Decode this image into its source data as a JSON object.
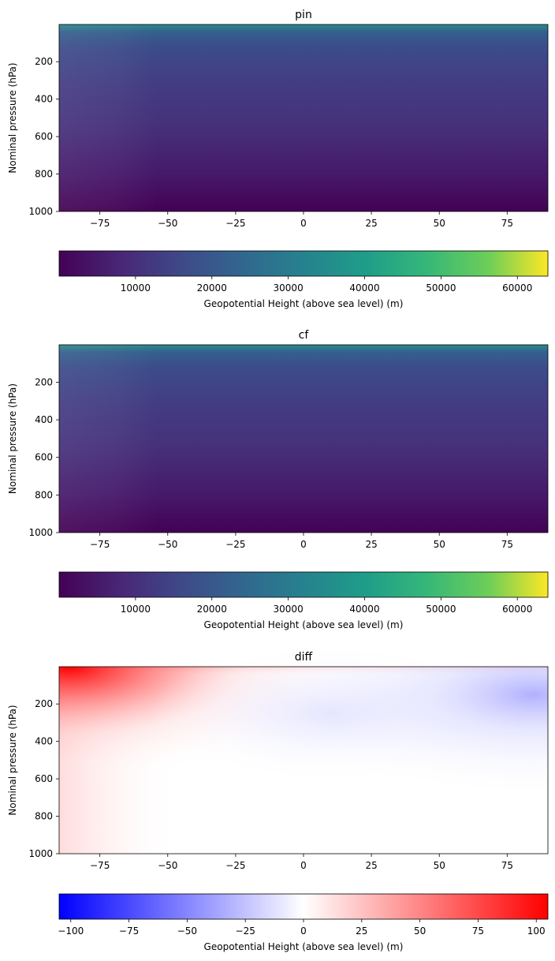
{
  "chart_data": [
    {
      "type": "heatmap",
      "title": "pin",
      "ylabel": "Nominal pressure (hPa)",
      "xlabel": "",
      "x_range": [
        -90,
        90
      ],
      "y_range": [
        1000,
        1
      ],
      "y_inverted": true,
      "x_ticks": [
        "−75",
        "−50",
        "−25",
        "0",
        "25",
        "50",
        "75"
      ],
      "x_tick_values": [
        -75,
        -50,
        -25,
        0,
        25,
        50,
        75
      ],
      "y_ticks": [
        "200",
        "400",
        "600",
        "800",
        "1000"
      ],
      "y_tick_values": [
        200,
        400,
        600,
        800,
        1000
      ],
      "colormap": "viridis",
      "colorbar": {
        "label": "Geopotential Height (above sea level) (m)",
        "range": [
          0,
          64000
        ],
        "ticks": [
          "10000",
          "20000",
          "30000",
          "40000",
          "50000",
          "60000"
        ],
        "tick_values": [
          10000,
          20000,
          30000,
          40000,
          50000,
          60000
        ]
      }
    },
    {
      "type": "heatmap",
      "title": "cf",
      "ylabel": "Nominal pressure (hPa)",
      "xlabel": "",
      "x_range": [
        -90,
        90
      ],
      "y_range": [
        1000,
        1
      ],
      "y_inverted": true,
      "x_ticks": [
        "−75",
        "−50",
        "−25",
        "0",
        "25",
        "50",
        "75"
      ],
      "x_tick_values": [
        -75,
        -50,
        -25,
        0,
        25,
        50,
        75
      ],
      "y_ticks": [
        "200",
        "400",
        "600",
        "800",
        "1000"
      ],
      "y_tick_values": [
        200,
        400,
        600,
        800,
        1000
      ],
      "colormap": "viridis",
      "colorbar": {
        "label": "Geopotential Height (above sea level) (m)",
        "range": [
          0,
          64000
        ],
        "ticks": [
          "10000",
          "20000",
          "30000",
          "40000",
          "50000",
          "60000"
        ],
        "tick_values": [
          10000,
          20000,
          30000,
          40000,
          50000,
          60000
        ]
      }
    },
    {
      "type": "heatmap",
      "title": "diff",
      "ylabel": "Nominal pressure (hPa)",
      "xlabel": "",
      "x_range": [
        -90,
        90
      ],
      "y_range": [
        1000,
        1
      ],
      "y_inverted": true,
      "x_ticks": [
        "−75",
        "−50",
        "−25",
        "0",
        "25",
        "50",
        "75"
      ],
      "x_tick_values": [
        -75,
        -50,
        -25,
        0,
        25,
        50,
        75
      ],
      "y_ticks": [
        "200",
        "400",
        "600",
        "800",
        "1000"
      ],
      "y_tick_values": [
        200,
        400,
        600,
        800,
        1000
      ],
      "colormap": "bwr",
      "colorbar": {
        "label": "Geopotential Height (above sea level) (m)",
        "range": [
          -105,
          105
        ],
        "ticks": [
          "−100",
          "−75",
          "−50",
          "−25",
          "0",
          "25",
          "50",
          "75",
          "100"
        ],
        "tick_values": [
          -100,
          -75,
          -50,
          -25,
          0,
          25,
          50,
          75,
          100
        ]
      }
    }
  ]
}
